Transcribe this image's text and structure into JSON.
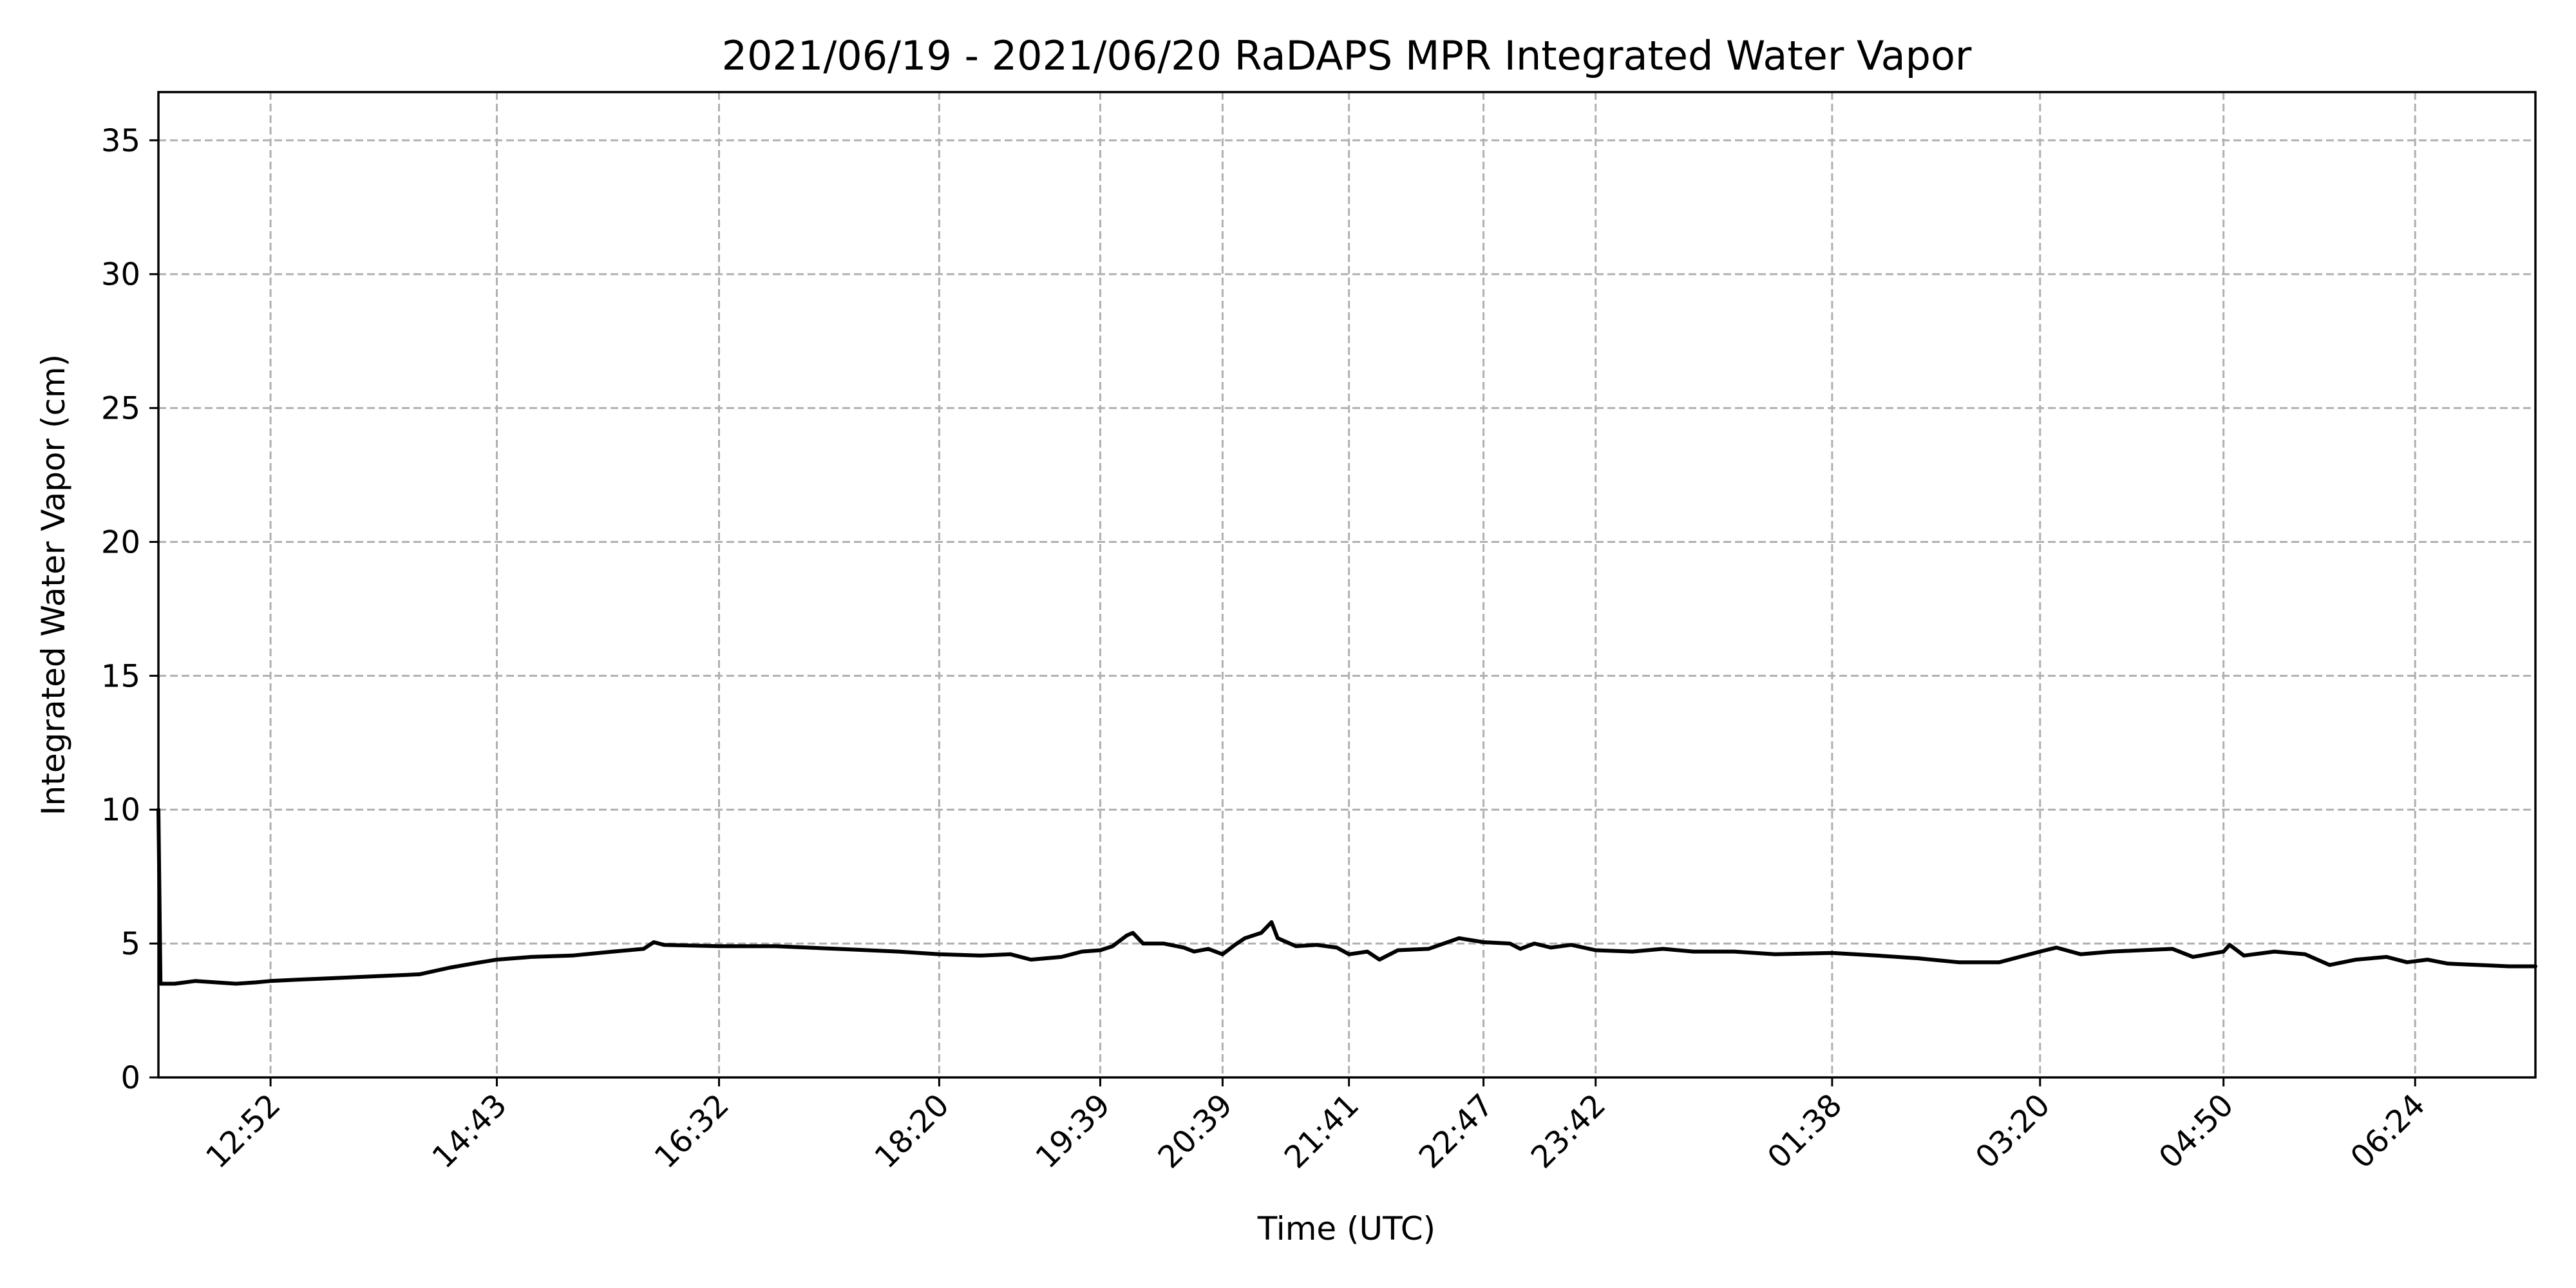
{
  "chart_data": {
    "type": "line",
    "title": "2021/06/19 - 2021/06/20 RaDAPS MPR Integrated Water Vapor",
    "xlabel": "Time (UTC)",
    "ylabel": "Integrated Water Vapor (cm)",
    "xlim": [
      "2021-06-19 11:57",
      "2021-06-20 07:23"
    ],
    "ylim": [
      0,
      36.8
    ],
    "yticks": [
      0,
      5,
      10,
      15,
      20,
      25,
      30,
      35
    ],
    "ytick_labels": [
      "0",
      "5",
      "10",
      "15",
      "20",
      "25",
      "30",
      "35"
    ],
    "xticks": [
      {
        "t": "2021-06-19 12:52",
        "label": "12:52"
      },
      {
        "t": "2021-06-19 14:43",
        "label": "14:43"
      },
      {
        "t": "2021-06-19 16:32",
        "label": "16:32"
      },
      {
        "t": "2021-06-19 18:20",
        "label": "18:20"
      },
      {
        "t": "2021-06-19 19:39",
        "label": "19:39"
      },
      {
        "t": "2021-06-19 20:39",
        "label": "20:39"
      },
      {
        "t": "2021-06-19 21:41",
        "label": "21:41"
      },
      {
        "t": "2021-06-19 22:47",
        "label": "22:47"
      },
      {
        "t": "2021-06-19 23:42",
        "label": "23:42"
      },
      {
        "t": "2021-06-20 01:38",
        "label": "01:38"
      },
      {
        "t": "2021-06-20 03:20",
        "label": "03:20"
      },
      {
        "t": "2021-06-20 04:50",
        "label": "04:50"
      },
      {
        "t": "2021-06-20 06:24",
        "label": "06:24"
      }
    ],
    "grid": true,
    "series": [
      {
        "color": "#000000",
        "points": [
          [
            "2021-06-19 11:57",
            10.0
          ],
          [
            "2021-06-19 11:58",
            3.5
          ],
          [
            "2021-06-19 12:05",
            3.5
          ],
          [
            "2021-06-19 12:15",
            3.6
          ],
          [
            "2021-06-19 12:25",
            3.55
          ],
          [
            "2021-06-19 12:35",
            3.5
          ],
          [
            "2021-06-19 12:45",
            3.55
          ],
          [
            "2021-06-19 12:52",
            3.6
          ],
          [
            "2021-06-19 13:05",
            3.65
          ],
          [
            "2021-06-19 13:20",
            3.7
          ],
          [
            "2021-06-19 13:35",
            3.75
          ],
          [
            "2021-06-19 13:50",
            3.8
          ],
          [
            "2021-06-19 14:05",
            3.85
          ],
          [
            "2021-06-19 14:20",
            4.1
          ],
          [
            "2021-06-19 14:35",
            4.3
          ],
          [
            "2021-06-19 14:43",
            4.4
          ],
          [
            "2021-06-19 15:00",
            4.5
          ],
          [
            "2021-06-19 15:20",
            4.55
          ],
          [
            "2021-06-19 15:40",
            4.7
          ],
          [
            "2021-06-19 15:55",
            4.8
          ],
          [
            "2021-06-19 16:00",
            5.05
          ],
          [
            "2021-06-19 16:05",
            4.95
          ],
          [
            "2021-06-19 16:32",
            4.9
          ],
          [
            "2021-06-19 17:00",
            4.9
          ],
          [
            "2021-06-19 17:30",
            4.8
          ],
          [
            "2021-06-19 18:00",
            4.7
          ],
          [
            "2021-06-19 18:20",
            4.6
          ],
          [
            "2021-06-19 18:40",
            4.55
          ],
          [
            "2021-06-19 18:55",
            4.6
          ],
          [
            "2021-06-19 19:05",
            4.4
          ],
          [
            "2021-06-19 19:20",
            4.5
          ],
          [
            "2021-06-19 19:30",
            4.7
          ],
          [
            "2021-06-19 19:39",
            4.75
          ],
          [
            "2021-06-19 19:45",
            4.9
          ],
          [
            "2021-06-19 19:52",
            5.3
          ],
          [
            "2021-06-19 19:55",
            5.4
          ],
          [
            "2021-06-19 20:00",
            5.0
          ],
          [
            "2021-06-19 20:10",
            5.0
          ],
          [
            "2021-06-19 20:20",
            4.85
          ],
          [
            "2021-06-19 20:25",
            4.7
          ],
          [
            "2021-06-19 20:32",
            4.8
          ],
          [
            "2021-06-19 20:39",
            4.6
          ],
          [
            "2021-06-19 20:45",
            4.95
          ],
          [
            "2021-06-19 20:50",
            5.2
          ],
          [
            "2021-06-19 20:58",
            5.4
          ],
          [
            "2021-06-19 21:03",
            5.8
          ],
          [
            "2021-06-19 21:06",
            5.2
          ],
          [
            "2021-06-19 21:15",
            4.9
          ],
          [
            "2021-06-19 21:25",
            4.95
          ],
          [
            "2021-06-19 21:35",
            4.85
          ],
          [
            "2021-06-19 21:41",
            4.6
          ],
          [
            "2021-06-19 21:50",
            4.7
          ],
          [
            "2021-06-19 21:56",
            4.4
          ],
          [
            "2021-06-19 22:05",
            4.75
          ],
          [
            "2021-06-19 22:20",
            4.8
          ],
          [
            "2021-06-19 22:35",
            5.2
          ],
          [
            "2021-06-19 22:47",
            5.05
          ],
          [
            "2021-06-19 23:00",
            5.0
          ],
          [
            "2021-06-19 23:05",
            4.8
          ],
          [
            "2021-06-19 23:12",
            5.0
          ],
          [
            "2021-06-19 23:20",
            4.85
          ],
          [
            "2021-06-19 23:30",
            4.95
          ],
          [
            "2021-06-19 23:42",
            4.75
          ],
          [
            "2021-06-20 00:00",
            4.7
          ],
          [
            "2021-06-20 00:15",
            4.8
          ],
          [
            "2021-06-20 00:30",
            4.7
          ],
          [
            "2021-06-20 00:50",
            4.7
          ],
          [
            "2021-06-20 01:10",
            4.6
          ],
          [
            "2021-06-20 01:38",
            4.65
          ],
          [
            "2021-06-20 02:00",
            4.55
          ],
          [
            "2021-06-20 02:20",
            4.45
          ],
          [
            "2021-06-20 02:40",
            4.3
          ],
          [
            "2021-06-20 03:00",
            4.3
          ],
          [
            "2021-06-20 03:10",
            4.5
          ],
          [
            "2021-06-20 03:20",
            4.7
          ],
          [
            "2021-06-20 03:28",
            4.85
          ],
          [
            "2021-06-20 03:40",
            4.6
          ],
          [
            "2021-06-20 03:55",
            4.7
          ],
          [
            "2021-06-20 04:10",
            4.75
          ],
          [
            "2021-06-20 04:25",
            4.8
          ],
          [
            "2021-06-20 04:35",
            4.5
          ],
          [
            "2021-06-20 04:50",
            4.7
          ],
          [
            "2021-06-20 04:53",
            4.95
          ],
          [
            "2021-06-20 05:00",
            4.55
          ],
          [
            "2021-06-20 05:15",
            4.7
          ],
          [
            "2021-06-20 05:30",
            4.6
          ],
          [
            "2021-06-20 05:42",
            4.2
          ],
          [
            "2021-06-20 05:55",
            4.4
          ],
          [
            "2021-06-20 06:10",
            4.5
          ],
          [
            "2021-06-20 06:20",
            4.3
          ],
          [
            "2021-06-20 06:30",
            4.4
          ],
          [
            "2021-06-20 06:40",
            4.25
          ],
          [
            "2021-06-20 06:55",
            4.2
          ],
          [
            "2021-06-20 07:10",
            4.15
          ],
          [
            "2021-06-20 07:23",
            4.15
          ]
        ]
      }
    ]
  }
}
